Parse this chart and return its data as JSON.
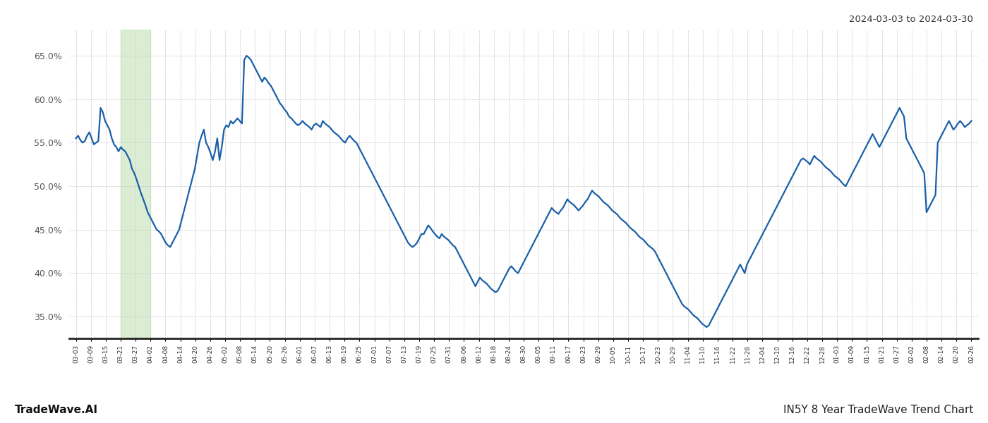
{
  "title_right": "2024-03-03 to 2024-03-30",
  "footer_left": "TradeWave.AI",
  "footer_right": "IN5Y 8 Year TradeWave Trend Chart",
  "ylim_low": 32.5,
  "ylim_high": 68.0,
  "ytick_values": [
    35.0,
    40.0,
    45.0,
    50.0,
    55.0,
    60.0,
    65.0
  ],
  "line_color": "#1a5fa8",
  "line_width": 1.6,
  "grid_color": "#c8c8c8",
  "grid_linestyle": "--",
  "bg_color": "#ffffff",
  "highlight_color": "#d4eacc",
  "highlight_alpha": 0.85,
  "highlight_xstart_label": "03-21",
  "highlight_xend_label": "04-02",
  "x_labels": [
    "03-03",
    "03-09",
    "03-15",
    "03-21",
    "03-27",
    "04-02",
    "04-08",
    "04-14",
    "04-20",
    "04-26",
    "05-02",
    "05-08",
    "05-14",
    "05-20",
    "05-26",
    "06-01",
    "06-07",
    "06-13",
    "06-19",
    "06-25",
    "07-01",
    "07-07",
    "07-13",
    "07-19",
    "07-25",
    "07-31",
    "08-06",
    "08-12",
    "08-18",
    "08-24",
    "08-30",
    "09-05",
    "09-11",
    "09-17",
    "09-23",
    "09-29",
    "10-05",
    "10-11",
    "10-17",
    "10-23",
    "10-29",
    "11-04",
    "11-10",
    "11-16",
    "11-22",
    "11-28",
    "12-04",
    "12-10",
    "12-16",
    "12-22",
    "12-28",
    "01-03",
    "01-09",
    "01-15",
    "01-21",
    "01-27",
    "02-02",
    "02-08",
    "02-14",
    "02-20",
    "02-26"
  ],
  "y_values": [
    55.5,
    55.8,
    55.3,
    55.0,
    55.2,
    55.8,
    56.2,
    55.5,
    54.8,
    55.0,
    55.2,
    59.0,
    58.5,
    57.5,
    57.0,
    56.5,
    55.5,
    54.8,
    54.5,
    54.0,
    54.5,
    54.2,
    54.0,
    53.5,
    53.0,
    52.0,
    51.5,
    50.8,
    50.0,
    49.2,
    48.5,
    47.8,
    47.0,
    46.5,
    46.0,
    45.5,
    45.0,
    44.8,
    44.5,
    44.0,
    43.5,
    43.2,
    43.0,
    43.5,
    44.0,
    44.5,
    45.0,
    46.0,
    47.0,
    48.0,
    49.0,
    50.0,
    51.0,
    52.0,
    53.5,
    55.0,
    55.8,
    56.5,
    55.0,
    54.5,
    53.8,
    53.0,
    54.0,
    55.5,
    53.0,
    54.5,
    56.5,
    57.0,
    56.8,
    57.5,
    57.2,
    57.5,
    57.8,
    57.5,
    57.2,
    64.5,
    65.0,
    64.8,
    64.5,
    64.0,
    63.5,
    63.0,
    62.5,
    62.0,
    62.5,
    62.2,
    61.8,
    61.5,
    61.0,
    60.5,
    60.0,
    59.5,
    59.2,
    58.8,
    58.5,
    58.0,
    57.8,
    57.5,
    57.2,
    57.0,
    57.2,
    57.5,
    57.2,
    57.0,
    56.8,
    56.5,
    57.0,
    57.2,
    57.0,
    56.8,
    57.5,
    57.2,
    57.0,
    56.8,
    56.5,
    56.2,
    56.0,
    55.8,
    55.5,
    55.2,
    55.0,
    55.5,
    55.8,
    55.5,
    55.2,
    55.0,
    54.5,
    54.0,
    53.5,
    53.0,
    52.5,
    52.0,
    51.5,
    51.0,
    50.5,
    50.0,
    49.5,
    49.0,
    48.5,
    48.0,
    47.5,
    47.0,
    46.5,
    46.0,
    45.5,
    45.0,
    44.5,
    44.0,
    43.5,
    43.2,
    43.0,
    43.2,
    43.5,
    44.0,
    44.5,
    44.5,
    45.0,
    45.5,
    45.2,
    44.8,
    44.5,
    44.2,
    44.0,
    44.5,
    44.2,
    44.0,
    43.8,
    43.5,
    43.2,
    43.0,
    42.5,
    42.0,
    41.5,
    41.0,
    40.5,
    40.0,
    39.5,
    39.0,
    38.5,
    39.0,
    39.5,
    39.2,
    39.0,
    38.8,
    38.5,
    38.2,
    38.0,
    37.8,
    38.0,
    38.5,
    39.0,
    39.5,
    40.0,
    40.5,
    40.8,
    40.5,
    40.2,
    40.0,
    40.5,
    41.0,
    41.5,
    42.0,
    42.5,
    43.0,
    43.5,
    44.0,
    44.5,
    45.0,
    45.5,
    46.0,
    46.5,
    47.0,
    47.5,
    47.2,
    47.0,
    46.8,
    47.2,
    47.5,
    48.0,
    48.5,
    48.2,
    48.0,
    47.8,
    47.5,
    47.2,
    47.5,
    47.8,
    48.2,
    48.5,
    49.0,
    49.5,
    49.2,
    49.0,
    48.8,
    48.5,
    48.2,
    48.0,
    47.8,
    47.5,
    47.2,
    47.0,
    46.8,
    46.5,
    46.2,
    46.0,
    45.8,
    45.5,
    45.2,
    45.0,
    44.8,
    44.5,
    44.2,
    44.0,
    43.8,
    43.5,
    43.2,
    43.0,
    42.8,
    42.5,
    42.0,
    41.5,
    41.0,
    40.5,
    40.0,
    39.5,
    39.0,
    38.5,
    38.0,
    37.5,
    37.0,
    36.5,
    36.2,
    36.0,
    35.8,
    35.5,
    35.2,
    35.0,
    34.8,
    34.5,
    34.2,
    34.0,
    33.8,
    34.0,
    34.5,
    35.0,
    35.5,
    36.0,
    36.5,
    37.0,
    37.5,
    38.0,
    38.5,
    39.0,
    39.5,
    40.0,
    40.5,
    41.0,
    40.5,
    40.0,
    41.0,
    41.5,
    42.0,
    42.5,
    43.0,
    43.5,
    44.0,
    44.5,
    45.0,
    45.5,
    46.0,
    46.5,
    47.0,
    47.5,
    48.0,
    48.5,
    49.0,
    49.5,
    50.0,
    50.5,
    51.0,
    51.5,
    52.0,
    52.5,
    53.0,
    53.2,
    53.0,
    52.8,
    52.5,
    53.0,
    53.5,
    53.2,
    53.0,
    52.8,
    52.5,
    52.2,
    52.0,
    51.8,
    51.5,
    51.2,
    51.0,
    50.8,
    50.5,
    50.2,
    50.0,
    50.5,
    51.0,
    51.5,
    52.0,
    52.5,
    53.0,
    53.5,
    54.0,
    54.5,
    55.0,
    55.5,
    56.0,
    55.5,
    55.0,
    54.5,
    55.0,
    55.5,
    56.0,
    56.5,
    57.0,
    57.5,
    58.0,
    58.5,
    59.0,
    58.5,
    58.0,
    55.5,
    55.0,
    54.5,
    54.0,
    53.5,
    53.0,
    52.5,
    52.0,
    51.5,
    47.0,
    47.5,
    48.0,
    48.5,
    49.0,
    55.0,
    55.5,
    56.0,
    56.5,
    57.0,
    57.5,
    57.0,
    56.5,
    56.8,
    57.2,
    57.5,
    57.2,
    56.8,
    57.0,
    57.2,
    57.5
  ]
}
